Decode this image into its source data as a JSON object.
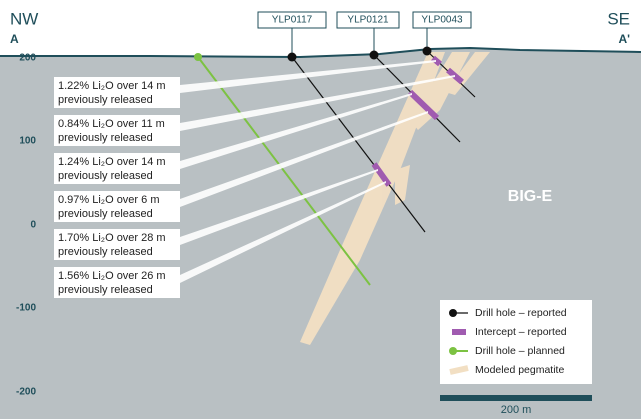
{
  "header": {
    "left": {
      "direction": "NW",
      "point": "A"
    },
    "right": {
      "direction": "SE",
      "point": "A'"
    }
  },
  "elevations": [
    "200",
    "100",
    "0",
    "-100",
    "-200"
  ],
  "drill_holes": [
    "YLP0117",
    "YLP0121",
    "YLP0043"
  ],
  "intercepts": [
    {
      "grade": "1.22% Li₂O over 14 m",
      "note": "previously released"
    },
    {
      "grade": "0.84% Li₂O over 11 m",
      "note": "previously released"
    },
    {
      "grade": "1.24% Li₂O over 14 m",
      "note": "previously released"
    },
    {
      "grade": "0.97% Li₂O over 6 m",
      "note": "previously released"
    },
    {
      "grade": "1.70% Li₂O over 28 m",
      "note": "previously released"
    },
    {
      "grade": "1.56% Li₂O over 26 m",
      "note": "previously released"
    }
  ],
  "zone": "BIG-E",
  "legend": [
    "Drill hole – reported",
    "Intercept – reported",
    "Drill hole – planned",
    "Modeled pegmatite"
  ],
  "scale": "200 m"
}
